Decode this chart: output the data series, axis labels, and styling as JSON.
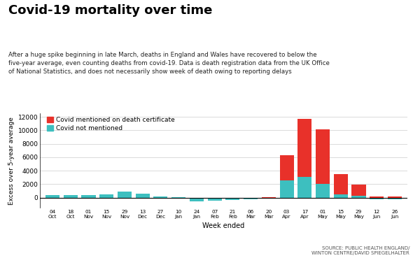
{
  "title": "Covid-19 mortality over time",
  "subtitle": "After a huge spike beginning in late March, deaths in England and Wales have recovered to below the\nfive-year average, even counting deaths from covid-19. Data is death registration data from the UK Office\nof National Statistics, and does not necessarily show week of death owing to reporting delays",
  "xlabel": "Week ended",
  "ylabel": "Excess over 5-year average",
  "source": "SOURCE: PUBLIC HEALTH ENGLAND/\nWINTON CENTRE/DAVID SPIEGELHALTER",
  "legend_covid": "Covid mentioned on death certificate",
  "legend_no_covid": "Covid not mentioned",
  "color_covid": "#e8312a",
  "color_no_covid": "#3dbfbf",
  "ylim": [
    -1500,
    12500
  ],
  "yticks": [
    0,
    2000,
    4000,
    6000,
    8000,
    10000,
    12000
  ],
  "tick_labels": [
    "04\nOct",
    "18\nOct",
    "01\nNov",
    "15\nNov",
    "29\nNov",
    "13\nDec",
    "27\nDec",
    "10\nJan",
    "24\nJan",
    "07\nFeb",
    "21\nFeb",
    "06\nMar",
    "20\nMar",
    "03\nApr",
    "17\nApr",
    "01\nMay",
    "15\nMay",
    "29\nMay",
    "12\nJun",
    "26\nJun"
  ],
  "covid_values": [
    0,
    0,
    0,
    0,
    0,
    0,
    0,
    0,
    0,
    0,
    0,
    0,
    100,
    3700,
    8600,
    8150,
    3050,
    1650,
    150,
    150
  ],
  "no_covid_values": [
    350,
    350,
    400,
    500,
    850,
    600,
    150,
    50,
    -550,
    -500,
    -400,
    -200,
    -100,
    2600,
    3100,
    2000,
    450,
    300,
    -200,
    -200
  ]
}
